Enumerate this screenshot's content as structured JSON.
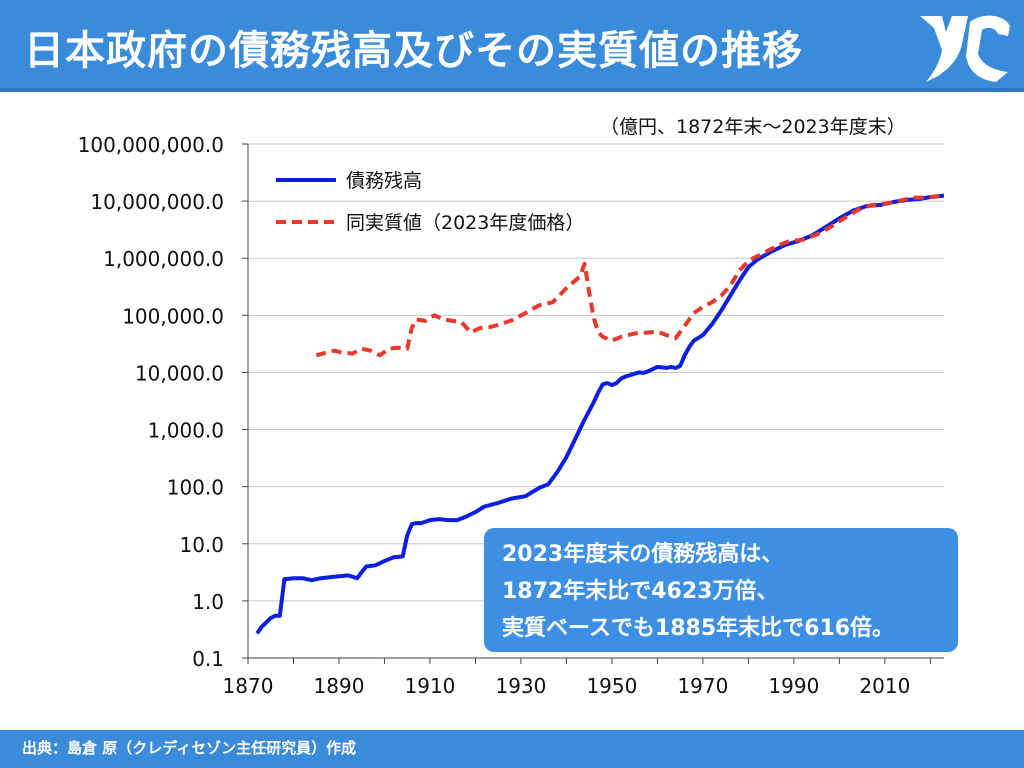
{
  "header": {
    "title": "日本政府の債務残高及びその実質値の推移"
  },
  "unit_note": "（億円、1872年末～2023年度末）",
  "callout": {
    "line1": "2023年度末の債務残高は、",
    "line2": "1872年末比で4623万倍、",
    "line3": "実質ベースでも1885年末比で616倍。"
  },
  "footer": {
    "source": "出典：島倉 原（クレディセゾン主任研究員）作成"
  },
  "colors": {
    "header_bg": "#3a8bd9",
    "nominal_series": "#0b1fe0",
    "real_series": "#e8382c",
    "callout_bg": "#3d8fe3"
  },
  "chart_data": {
    "type": "line",
    "y_scale": "log",
    "ylim": [
      0.1,
      100000000
    ],
    "xlim": [
      1870,
      2023
    ],
    "yticks": [
      0.1,
      1,
      10,
      100,
      1000,
      10000,
      100000,
      1000000,
      10000000,
      100000000
    ],
    "ytick_labels": [
      "0.1",
      "1.0",
      "10.0",
      "100.0",
      "1,000.0",
      "10,000.0",
      "100,000.0",
      "1,000,000.0",
      "10,000,000.0",
      "100,000,000.0"
    ],
    "xticks": [
      1870,
      1890,
      1910,
      1930,
      1950,
      1970,
      1990,
      2010
    ],
    "grid": true,
    "legend_position": "top-left",
    "series": [
      {
        "name": "債務残高",
        "style": "solid",
        "points": [
          [
            1872,
            0.27
          ],
          [
            1873,
            0.35
          ],
          [
            1874,
            0.42
          ],
          [
            1875,
            0.5
          ],
          [
            1876,
            0.55
          ],
          [
            1877,
            0.55
          ],
          [
            1878,
            2.4
          ],
          [
            1880,
            2.5
          ],
          [
            1882,
            2.5
          ],
          [
            1884,
            2.3
          ],
          [
            1886,
            2.5
          ],
          [
            1888,
            2.6
          ],
          [
            1890,
            2.7
          ],
          [
            1892,
            2.8
          ],
          [
            1894,
            2.5
          ],
          [
            1895,
            3.2
          ],
          [
            1896,
            4.0
          ],
          [
            1898,
            4.2
          ],
          [
            1900,
            5.0
          ],
          [
            1902,
            5.8
          ],
          [
            1904,
            6.0
          ],
          [
            1905,
            14
          ],
          [
            1906,
            22
          ],
          [
            1907,
            23
          ],
          [
            1908,
            23
          ],
          [
            1910,
            26
          ],
          [
            1912,
            27
          ],
          [
            1914,
            26
          ],
          [
            1916,
            26
          ],
          [
            1918,
            30
          ],
          [
            1920,
            36
          ],
          [
            1922,
            45
          ],
          [
            1925,
            52
          ],
          [
            1928,
            62
          ],
          [
            1931,
            68
          ],
          [
            1934,
            95
          ],
          [
            1936,
            110
          ],
          [
            1938,
            180
          ],
          [
            1940,
            330
          ],
          [
            1942,
            700
          ],
          [
            1944,
            1500
          ],
          [
            1946,
            3000
          ],
          [
            1947,
            4500
          ],
          [
            1948,
            6200
          ],
          [
            1949,
            6500
          ],
          [
            1950,
            6000
          ],
          [
            1951,
            6500
          ],
          [
            1952,
            7800
          ],
          [
            1953,
            8500
          ],
          [
            1955,
            9500
          ],
          [
            1956,
            10000
          ],
          [
            1957,
            9800
          ],
          [
            1958,
            10500
          ],
          [
            1960,
            12500
          ],
          [
            1962,
            12000
          ],
          [
            1963,
            12500
          ],
          [
            1964,
            12000
          ],
          [
            1965,
            13000
          ],
          [
            1966,
            20000
          ],
          [
            1967,
            28000
          ],
          [
            1968,
            36000
          ],
          [
            1970,
            45000
          ],
          [
            1972,
            70000
          ],
          [
            1974,
            120000
          ],
          [
            1976,
            220000
          ],
          [
            1978,
            400000
          ],
          [
            1980,
            700000
          ],
          [
            1982,
            950000
          ],
          [
            1985,
            1300000
          ],
          [
            1988,
            1700000
          ],
          [
            1991,
            2000000
          ],
          [
            1994,
            2500000
          ],
          [
            1997,
            3500000
          ],
          [
            2000,
            5000000
          ],
          [
            2003,
            6800000
          ],
          [
            2006,
            8200000
          ],
          [
            2009,
            8600000
          ],
          [
            2012,
            9700000
          ],
          [
            2015,
            10500000
          ],
          [
            2018,
            11000000
          ],
          [
            2020,
            11800000
          ],
          [
            2023,
            12500000
          ]
        ]
      },
      {
        "name": "同実質値（2023年度価格）",
        "style": "dashed",
        "points": [
          [
            1885,
            20000
          ],
          [
            1887,
            22000
          ],
          [
            1889,
            24000
          ],
          [
            1891,
            22000
          ],
          [
            1893,
            21500
          ],
          [
            1895,
            26000
          ],
          [
            1897,
            24000
          ],
          [
            1899,
            20000
          ],
          [
            1901,
            26000
          ],
          [
            1903,
            27000
          ],
          [
            1905,
            26000
          ],
          [
            1906,
            60000
          ],
          [
            1907,
            85000
          ],
          [
            1909,
            80000
          ],
          [
            1911,
            100000
          ],
          [
            1913,
            85000
          ],
          [
            1915,
            80000
          ],
          [
            1917,
            75000
          ],
          [
            1919,
            50000
          ],
          [
            1921,
            60000
          ],
          [
            1923,
            62000
          ],
          [
            1925,
            68000
          ],
          [
            1928,
            82000
          ],
          [
            1931,
            110000
          ],
          [
            1934,
            150000
          ],
          [
            1937,
            170000
          ],
          [
            1940,
            300000
          ],
          [
            1943,
            480000
          ],
          [
            1944,
            800000
          ],
          [
            1945,
            250000
          ],
          [
            1946,
            90000
          ],
          [
            1947,
            50000
          ],
          [
            1948,
            42000
          ],
          [
            1950,
            36000
          ],
          [
            1952,
            42000
          ],
          [
            1955,
            48000
          ],
          [
            1958,
            50000
          ],
          [
            1960,
            52000
          ],
          [
            1962,
            45000
          ],
          [
            1964,
            40000
          ],
          [
            1966,
            65000
          ],
          [
            1968,
            110000
          ],
          [
            1970,
            140000
          ],
          [
            1972,
            170000
          ],
          [
            1974,
            220000
          ],
          [
            1976,
            330000
          ],
          [
            1978,
            600000
          ],
          [
            1980,
            900000
          ],
          [
            1983,
            1200000
          ],
          [
            1986,
            1600000
          ],
          [
            1989,
            2000000
          ],
          [
            1992,
            2100000
          ],
          [
            1995,
            2600000
          ],
          [
            1998,
            3500000
          ],
          [
            2001,
            5000000
          ],
          [
            2004,
            7000000
          ],
          [
            2007,
            8500000
          ],
          [
            2010,
            9000000
          ],
          [
            2013,
            10000000
          ],
          [
            2016,
            11500000
          ],
          [
            2019,
            11500000
          ],
          [
            2021,
            12000000
          ],
          [
            2023,
            12500000
          ]
        ]
      }
    ]
  }
}
